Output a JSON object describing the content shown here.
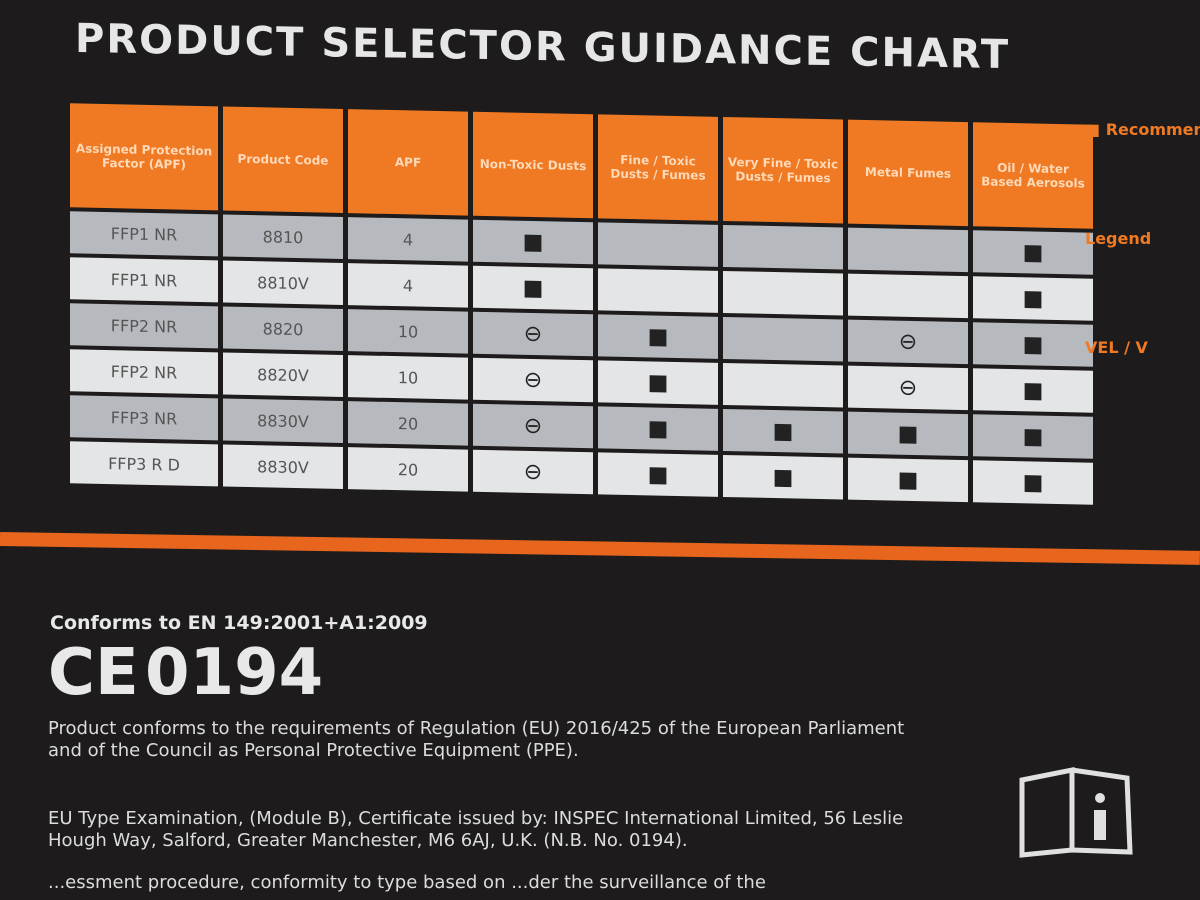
{
  "header": {
    "title": "PRODUCT SELECTOR GUIDANCE CHART"
  },
  "table": {
    "columns": [
      "Assigned Protection Factor (APF)",
      "Product Code",
      "APF",
      "Non-Toxic Dusts",
      "Fine / Toxic Dusts / Fumes",
      "Very Fine / Toxic Dusts / Fumes",
      "Metal Fumes",
      "Oil / Water Based Aerosols"
    ],
    "rows": [
      [
        "FFP1 NR",
        "8810",
        "4",
        "■",
        null,
        null,
        null,
        "■"
      ],
      [
        "FFP1 NR",
        "8810V",
        "4",
        "■",
        null,
        null,
        null,
        "■"
      ],
      [
        "FFP2 NR",
        "8820",
        "10",
        "⊖",
        "■",
        null,
        "⊖",
        "■"
      ],
      [
        "FFP2 NR",
        "8820V",
        "10",
        "⊖",
        "■",
        null,
        "⊖",
        "■"
      ],
      [
        "FFP3 NR",
        "8830V",
        "20",
        "⊖",
        "■",
        "■",
        "■",
        "■"
      ],
      [
        "FFP3 R D",
        "8830V",
        "20",
        "⊖",
        "■",
        "■",
        "■",
        "■"
      ]
    ]
  },
  "sidebar": {
    "items": [
      "■ Recommended",
      "Legend",
      "VEL / V"
    ]
  },
  "compliance": {
    "standard": "Conforms to EN 149:2001+A1:2009",
    "ce_mark": "CE",
    "notified_body": "0194",
    "paragraphs": [
      "Product conforms to the requirements of Regulation (EU) 2016/425 of the European Parliament and of the Council as Personal Protective Equipment (PPE).",
      "EU Type Examination, (Module B), Certificate issued by: INSPEC International Limited, 56 Leslie Hough Way, Salford, Greater Manchester, M6 6AJ, U.K. (N.B. No. 0194).",
      "...essment procedure, conformity to type based on ...der the surveillance of the"
    ]
  }
}
